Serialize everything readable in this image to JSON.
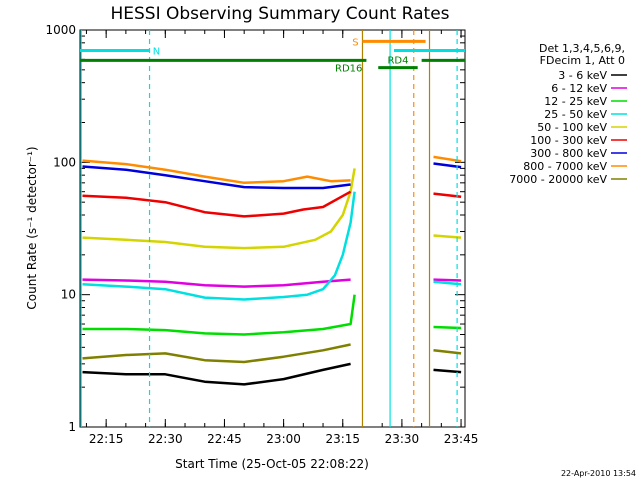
{
  "chart_data": {
    "type": "line",
    "title": "HESSI Observing Summary Count Rates",
    "xlabel": "Start Time (25-Oct-05 22:08:22)",
    "ylabel": "Count Rate (s⁻¹ detector⁻¹)",
    "yscale": "log",
    "ylim": [
      1,
      1000
    ],
    "xlim": [
      "22:08:22",
      "23:46:00"
    ],
    "x_ticks": [
      "22:15",
      "22:30",
      "22:45",
      "23:00",
      "23:15",
      "23:30",
      "23:45"
    ],
    "y_ticks": [
      "1",
      "10",
      "100",
      "1000"
    ],
    "legend_header": [
      "Det 1,3,4,5,6,9,",
      "FDecim 1, Att 0"
    ],
    "legend_position": "right",
    "series": [
      {
        "name": "3 - 6 keV",
        "color": "#000000",
        "points": [
          [
            "22:09",
            2.6
          ],
          [
            "22:20",
            2.5
          ],
          [
            "22:30",
            2.5
          ],
          [
            "22:40",
            2.2
          ],
          [
            "22:50",
            2.1
          ],
          [
            "23:00",
            2.3
          ],
          [
            "23:10",
            2.7
          ],
          [
            "23:17",
            3.0
          ],
          [
            "23:38",
            2.7
          ],
          [
            "23:45",
            2.6
          ]
        ]
      },
      {
        "name": "6 - 12 keV",
        "color": "#e000e0",
        "points": [
          [
            "22:09",
            13
          ],
          [
            "22:20",
            12.8
          ],
          [
            "22:30",
            12.5
          ],
          [
            "22:40",
            11.8
          ],
          [
            "22:50",
            11.5
          ],
          [
            "23:00",
            11.8
          ],
          [
            "23:10",
            12.5
          ],
          [
            "23:17",
            13
          ],
          [
            "23:38",
            13
          ],
          [
            "23:45",
            12.8
          ]
        ]
      },
      {
        "name": "12 - 25 keV",
        "color": "#00dd00",
        "points": [
          [
            "22:09",
            5.5
          ],
          [
            "22:20",
            5.5
          ],
          [
            "22:30",
            5.4
          ],
          [
            "22:40",
            5.1
          ],
          [
            "22:50",
            5.0
          ],
          [
            "23:00",
            5.2
          ],
          [
            "23:10",
            5.5
          ],
          [
            "23:17",
            6.0
          ],
          [
            "23:18",
            10
          ],
          [
            "23:38",
            5.7
          ],
          [
            "23:45",
            5.6
          ]
        ]
      },
      {
        "name": "25 - 50 keV",
        "color": "#00e0e0",
        "points": [
          [
            "22:09",
            12
          ],
          [
            "22:20",
            11.5
          ],
          [
            "22:30",
            11
          ],
          [
            "22:40",
            9.5
          ],
          [
            "22:50",
            9.2
          ],
          [
            "23:00",
            9.6
          ],
          [
            "23:06",
            10
          ],
          [
            "23:10",
            11
          ],
          [
            "23:13",
            14
          ],
          [
            "23:15",
            20
          ],
          [
            "23:17",
            35
          ],
          [
            "23:18",
            60
          ],
          [
            "23:38",
            12.5
          ],
          [
            "23:45",
            12
          ]
        ]
      },
      {
        "name": "50 - 100 keV",
        "color": "#d4d400",
        "points": [
          [
            "22:09",
            27
          ],
          [
            "22:20",
            26
          ],
          [
            "22:30",
            25
          ],
          [
            "22:40",
            23
          ],
          [
            "22:50",
            22.5
          ],
          [
            "23:00",
            23
          ],
          [
            "23:08",
            26
          ],
          [
            "23:12",
            30
          ],
          [
            "23:15",
            40
          ],
          [
            "23:17",
            60
          ],
          [
            "23:18",
            90
          ],
          [
            "23:38",
            28
          ],
          [
            "23:45",
            27
          ]
        ]
      },
      {
        "name": "100 - 300 keV",
        "color": "#ee0000",
        "points": [
          [
            "22:09",
            56
          ],
          [
            "22:20",
            54
          ],
          [
            "22:30",
            50
          ],
          [
            "22:40",
            42
          ],
          [
            "22:50",
            39
          ],
          [
            "23:00",
            41
          ],
          [
            "23:05",
            44
          ],
          [
            "23:10",
            46
          ],
          [
            "23:17",
            60
          ],
          [
            "23:38",
            58
          ],
          [
            "23:45",
            55
          ]
        ]
      },
      {
        "name": "300 - 800 keV",
        "color": "#0000dd",
        "points": [
          [
            "22:09",
            93
          ],
          [
            "22:20",
            88
          ],
          [
            "22:30",
            80
          ],
          [
            "22:40",
            72
          ],
          [
            "22:50",
            65
          ],
          [
            "23:00",
            64
          ],
          [
            "23:10",
            64
          ],
          [
            "23:17",
            68
          ],
          [
            "23:38",
            98
          ],
          [
            "23:45",
            92
          ]
        ]
      },
      {
        "name": "800 - 7000 keV",
        "color": "#ff8c00",
        "points": [
          [
            "22:09",
            103
          ],
          [
            "22:20",
            97
          ],
          [
            "22:30",
            88
          ],
          [
            "22:40",
            78
          ],
          [
            "22:50",
            70
          ],
          [
            "23:00",
            72
          ],
          [
            "23:06",
            78
          ],
          [
            "23:12",
            72
          ],
          [
            "23:17",
            73
          ],
          [
            "23:38",
            110
          ],
          [
            "23:45",
            102
          ]
        ]
      },
      {
        "name": "7000 - 20000 keV",
        "color": "#808000",
        "points": [
          [
            "22:09",
            3.3
          ],
          [
            "22:20",
            3.5
          ],
          [
            "22:30",
            3.6
          ],
          [
            "22:40",
            3.2
          ],
          [
            "22:50",
            3.1
          ],
          [
            "23:00",
            3.4
          ],
          [
            "23:10",
            3.8
          ],
          [
            "23:17",
            4.2
          ],
          [
            "23:38",
            3.8
          ],
          [
            "23:45",
            3.6
          ]
        ]
      }
    ],
    "status_bars": [
      {
        "label": "N",
        "color": "#00e0e0",
        "start": "22:08:22",
        "end": "22:26",
        "level": 700
      },
      {
        "label": "S",
        "color": "#ff8c00",
        "start": "23:20",
        "end": "23:36",
        "level": 820
      },
      {
        "label": "",
        "color": "#00e0e0",
        "start": "23:28",
        "end": "23:46",
        "level": 700
      },
      {
        "label": "RD16",
        "color": "#008000",
        "start": "22:08:22",
        "end": "23:21",
        "level": 590
      },
      {
        "label": "RD4",
        "color": "#008000",
        "start": "23:24",
        "end": "23:34",
        "level": 520
      },
      {
        "label": "",
        "color": "#008000",
        "start": "23:35",
        "end": "23:46",
        "level": 590
      }
    ],
    "vertical_markers": [
      {
        "time": "22:08:40",
        "color": "#00e0e0",
        "style": "solid"
      },
      {
        "time": "22:26",
        "color": "#00e0e0",
        "style": "dashed"
      },
      {
        "time": "23:20",
        "color": "#b08000",
        "style": "solid"
      },
      {
        "time": "23:27",
        "color": "#00e0e0",
        "style": "solid"
      },
      {
        "time": "23:33",
        "color": "#ff8c00",
        "style": "dashed"
      },
      {
        "time": "23:37",
        "color": "#b08000",
        "style": "solid"
      },
      {
        "time": "23:44",
        "color": "#00e0e0",
        "style": "dashed"
      }
    ],
    "data_gap": [
      "23:20",
      "23:37"
    ],
    "date_stamp": "22-Apr-2010 13:54"
  }
}
